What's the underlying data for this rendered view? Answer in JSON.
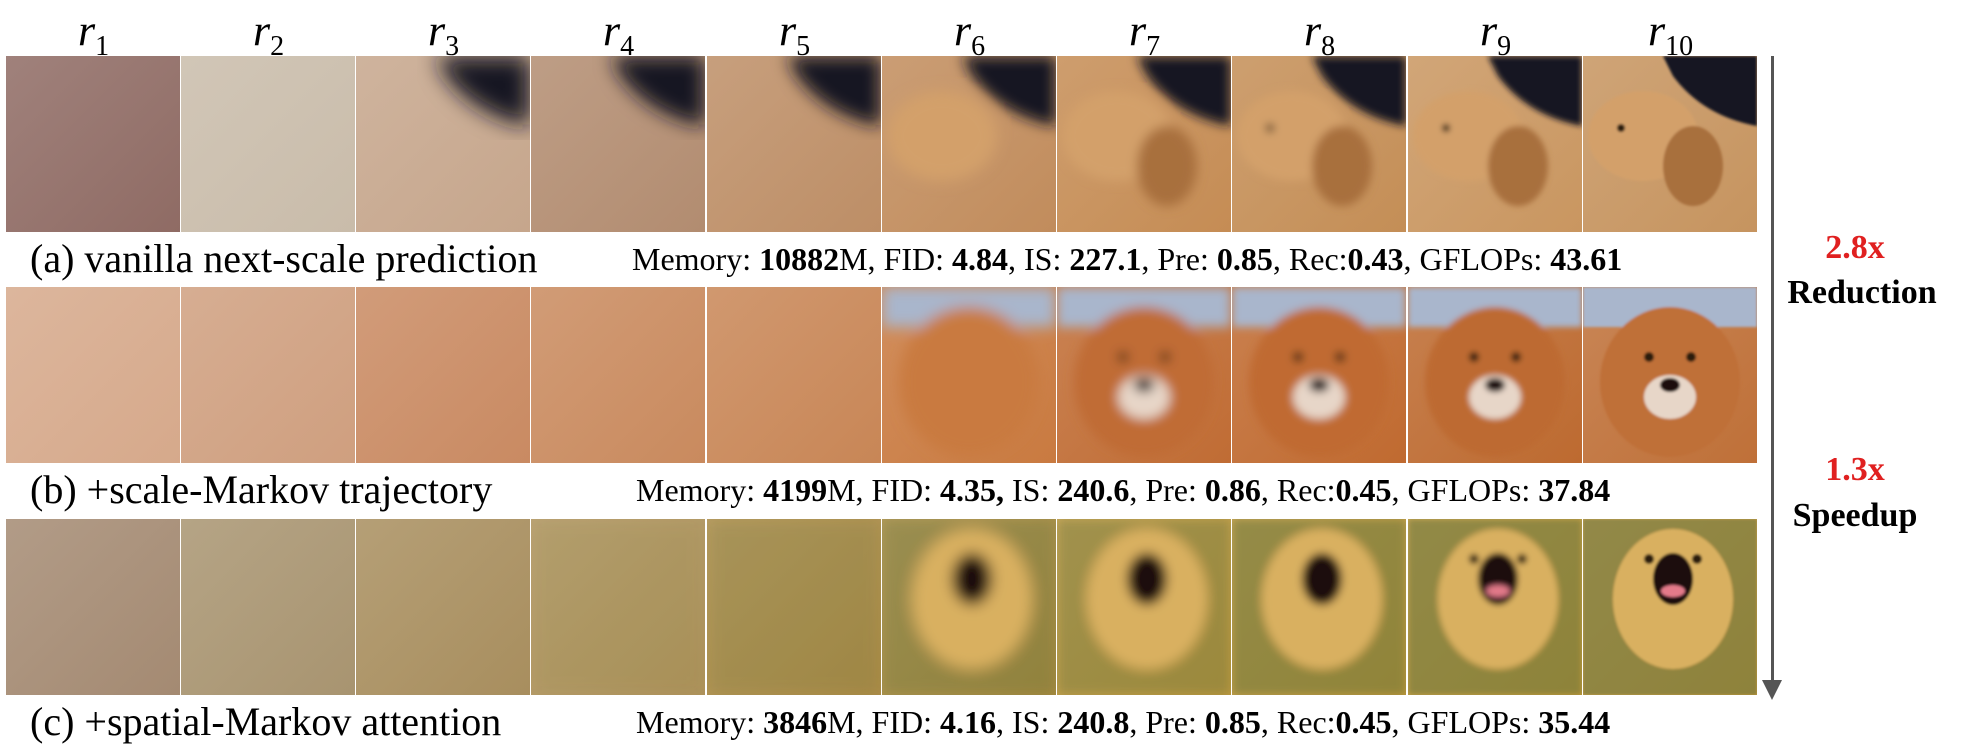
{
  "columns": [
    {
      "var": "r",
      "sub": "1"
    },
    {
      "var": "r",
      "sub": "2"
    },
    {
      "var": "r",
      "sub": "3"
    },
    {
      "var": "r",
      "sub": "4"
    },
    {
      "var": "r",
      "sub": "5"
    },
    {
      "var": "r",
      "sub": "6"
    },
    {
      "var": "r",
      "sub": "7"
    },
    {
      "var": "r",
      "sub": "8"
    },
    {
      "var": "r",
      "sub": "9"
    },
    {
      "var": "r",
      "sub": "10"
    }
  ],
  "rows": [
    {
      "caption": "(a) vanilla next-scale prediction",
      "metrics": {
        "mem_label": "Memory: ",
        "mem_value": "10882",
        "mem_unit": "M",
        "fid_label": ", FID: ",
        "fid_value": "4.84",
        "is_label": ", IS: ",
        "is_value": "227.1",
        "pre_label": ", Pre: ",
        "pre_value": "0.85",
        "rec_label": ", Rec:",
        "rec_value": "0.43",
        "gf_label": ", GFLOPs: ",
        "gf_value": "43.61"
      },
      "tile_colors": [
        "#8f6b64",
        "#c9bcaa",
        "#c6a68c",
        "#b28c70",
        "#bd8e66",
        "#c18c5c",
        "#c58c54",
        "#c48e56",
        "#c99660",
        "#c6945f"
      ],
      "bg_dark": "#141820"
    },
    {
      "caption": "(b) +scale-Markov trajectory",
      "metrics": {
        "mem_label": "Memory: ",
        "mem_value": "4199",
        "mem_unit": "M",
        "fid_label": ", FID: ",
        "fid_value": "4.35,",
        "is_label": " IS: ",
        "is_value": "240.6",
        "pre_label": ", Pre: ",
        "pre_value": "0.86",
        "rec_label": ", Rec:",
        "rec_value": "0.45",
        "gf_label": ", GFLOPs: ",
        "gf_value": "37.84"
      },
      "tile_colors": [
        "#d6a98b",
        "#cf9f7f",
        "#c98a62",
        "#c98a5e",
        "#c88656",
        "#c97a40",
        "#c06c34",
        "#c06a30",
        "#bd6a30",
        "#bf7038"
      ],
      "bg_sky": "#a9b6cc"
    },
    {
      "caption": "(c) +spatial-Markov attention",
      "metrics": {
        "mem_label": "Memory: ",
        "mem_value": "3846",
        "mem_unit": "M",
        "fid_label": ", FID: ",
        "fid_value": "4.16",
        "is_label": ", IS: ",
        "is_value": "240.8",
        "pre_label": ", Pre: ",
        "pre_value": "0.85",
        "rec_label": ", Rec:",
        "rec_value": "0.45",
        "gf_label": ", GFLOPs: ",
        "gf_value": "35.44"
      },
      "tile_colors": [
        "#a48a72",
        "#a89470",
        "#a88e5e",
        "#b0935a",
        "#ae8c46",
        "#a88a3e",
        "#c29a3e",
        "#c49a3a",
        "#c79c38",
        "#c89a3c"
      ],
      "bg_green": "#5e6d38"
    }
  ],
  "side": {
    "first_value": "2.8x",
    "first_label": "Reduction",
    "second_value": "1.3x",
    "second_label": "Speedup",
    "accent": "#e02020"
  }
}
